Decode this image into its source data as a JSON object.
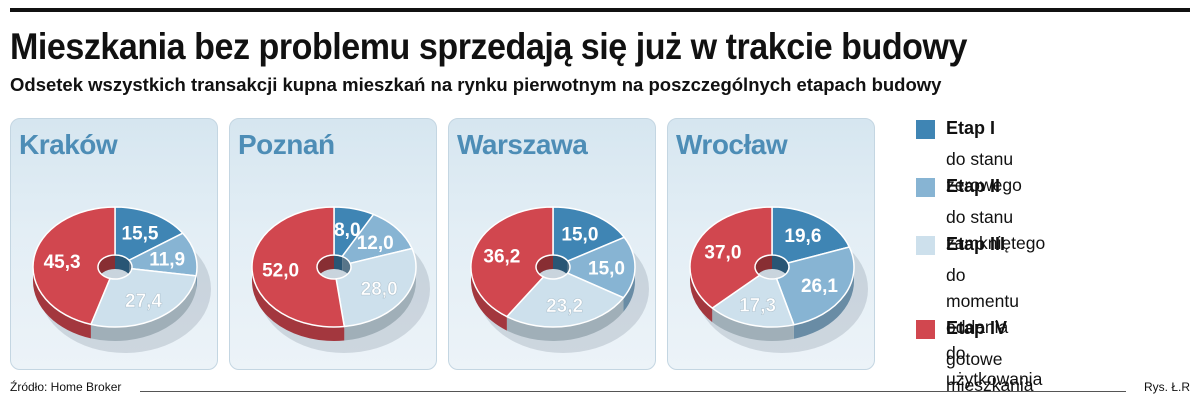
{
  "title": "Mieszkania bez problemu sprzedają się już w trakcie budowy",
  "subtitle": "Odsetek wszystkich transakcji kupna mieszkań na rynku pierwotnym na poszczególnych etapach budowy",
  "source": "Źródło: Home Broker",
  "credit": "Rys. Ł.R",
  "legend": [
    {
      "name": "Etap I",
      "desc": "do stanu zerowego",
      "color": "#3f85b4"
    },
    {
      "name": "Etap II",
      "desc": "do stanu zamkniętego",
      "color": "#87b4d3"
    },
    {
      "name": "Etap III",
      "desc": "do momentu oddania\ndo użytkowania",
      "color": "#cde0ec"
    },
    {
      "name": "Etap IV",
      "desc": "gotowe mieszkania",
      "color": "#d1474f"
    }
  ],
  "chart_data": [
    {
      "type": "pie",
      "title": "Kraków",
      "categories": [
        "Etap I",
        "Etap II",
        "Etap III",
        "Etap IV"
      ],
      "values": [
        15.5,
        11.9,
        27.4,
        45.3
      ],
      "labels": [
        "15,5",
        "11,9",
        "27,4",
        "45,3"
      ]
    },
    {
      "type": "pie",
      "title": "Poznań",
      "categories": [
        "Etap I",
        "Etap II",
        "Etap III",
        "Etap IV"
      ],
      "values": [
        8.0,
        12.0,
        28.0,
        52.0
      ],
      "labels": [
        "8,0",
        "12,0",
        "28,0",
        "52,0"
      ]
    },
    {
      "type": "pie",
      "title": "Warszawa",
      "categories": [
        "Etap I",
        "Etap II",
        "Etap III",
        "Etap IV"
      ],
      "values": [
        15.0,
        15.0,
        23.2,
        36.2
      ],
      "labels": [
        "15,0",
        "15,0",
        "23,2",
        "36,2"
      ]
    },
    {
      "type": "pie",
      "title": "Wrocław",
      "categories": [
        "Etap I",
        "Etap II",
        "Etap III",
        "Etap IV"
      ],
      "values": [
        19.6,
        26.1,
        17.3,
        37.0
      ],
      "labels": [
        "19,6",
        "26,1",
        "17,3",
        "37,0"
      ]
    }
  ]
}
